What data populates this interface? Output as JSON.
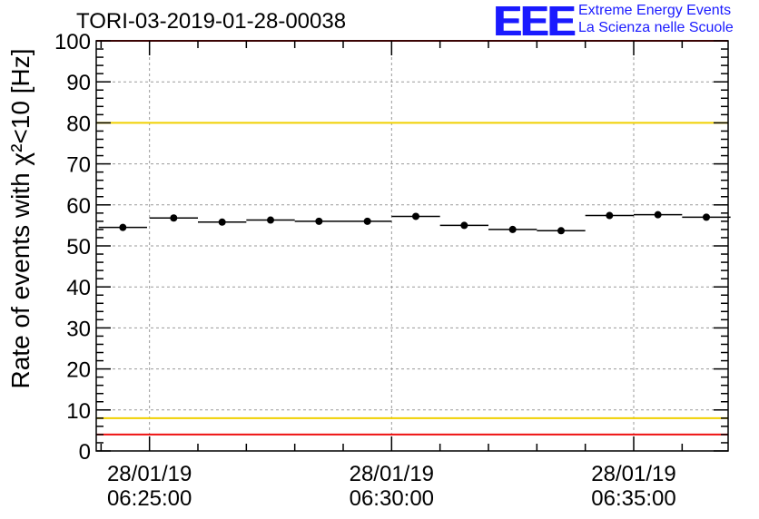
{
  "chart_data": {
    "type": "scatter",
    "title": "TORI-03-2019-01-28-00038",
    "ylabel": "Rate of events with χ²<10 [Hz]",
    "ylim": [
      0,
      100
    ],
    "y_ticks": [
      0,
      10,
      20,
      30,
      40,
      50,
      60,
      70,
      80,
      90,
      100
    ],
    "x_range_minutes": [
      -1.1,
      11.95
    ],
    "x_ticks": [
      {
        "minute": 0,
        "date": "28/01/19",
        "time": "06:25:00"
      },
      {
        "minute": 5,
        "date": "28/01/19",
        "time": "06:30:00"
      },
      {
        "minute": 10,
        "date": "28/01/19",
        "time": "06:35:00"
      }
    ],
    "reference_lines": [
      {
        "value": 100,
        "color": "#ee1111"
      },
      {
        "value": 80,
        "color": "#f0d000"
      },
      {
        "value": 8,
        "color": "#f0d000"
      },
      {
        "value": 4,
        "color": "#ee1111"
      }
    ],
    "series": [
      {
        "name": "rate",
        "bin_width_minutes": 1,
        "x_minutes": [
          -0.55,
          0.5,
          1.5,
          2.5,
          3.5,
          4.5,
          5.5,
          6.5,
          7.5,
          8.5,
          9.5,
          10.5,
          11.5
        ],
        "values": [
          54.5,
          56.8,
          55.8,
          56.3,
          56.0,
          56.0,
          57.2,
          55.0,
          54.0,
          53.7,
          57.4,
          57.6,
          57.0
        ]
      }
    ]
  },
  "logo": {
    "mark": "EEE",
    "line1": "Extreme Energy Events",
    "line2": "La Scienza nelle Scuole",
    "color": "#1a1aff"
  }
}
